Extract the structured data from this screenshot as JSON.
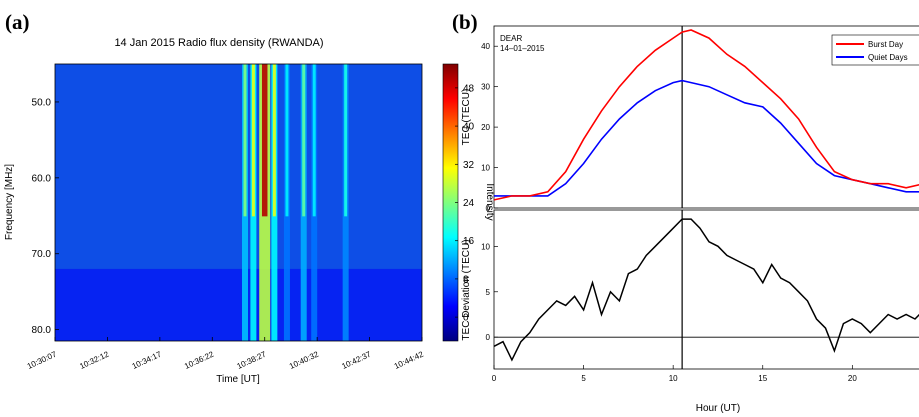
{
  "panel_a": {
    "label": "(a)",
    "title": "14 Jan 2015 Radio flux density (RWANDA)",
    "xlabel": "Time [UT]",
    "ylabel": "Frequency [MHz]",
    "colorbar_label": "Intensity",
    "colorbar_ticks": [
      "48",
      "40",
      "32",
      "24",
      "16",
      "8",
      "0"
    ]
  },
  "panel_b": {
    "label": "(b)",
    "xlabel": "Hour (UT)",
    "top": {
      "annotation_line1": "DEAR",
      "annotation_line2": "14–01–2015",
      "ylabel": "TEC (TECU)",
      "legend": [
        "Burst Day",
        "Quiet Days"
      ]
    },
    "bottom": {
      "ylabel": "TEC Deviation (TECU)"
    }
  },
  "chart_data": [
    {
      "type": "heatmap",
      "title": "14 Jan 2015 Radio flux density (RWANDA)",
      "xlabel": "Time [UT]",
      "ylabel": "Frequency [MHz]",
      "x_tick_labels": [
        "10:30:07",
        "10:32:12",
        "10:34:17",
        "10:36:22",
        "10:38:27",
        "10:40:32",
        "10:42:37",
        "10:44:42"
      ],
      "y_tick_labels": [
        "50.0",
        "60.0",
        "70.0",
        "80.0"
      ],
      "y_ticks": [
        50,
        60,
        70,
        80
      ],
      "ylim": [
        45,
        81.5
      ],
      "y_inverted": true,
      "colorbar_label": "Intensity",
      "colorbar_range": [
        -5,
        53
      ],
      "colorbar_ticks": [
        0,
        8,
        16,
        24,
        32,
        40,
        48
      ],
      "colormap": "jet",
      "background_intensity": 4,
      "features": [
        {
          "time": "10:37:40",
          "intensity_max": 24
        },
        {
          "time": "10:38:00",
          "intensity_max": 30
        },
        {
          "time": "10:38:27",
          "intensity_max": 50
        },
        {
          "time": "10:38:50",
          "intensity_max": 30
        },
        {
          "time": "10:39:20",
          "intensity_max": 16
        },
        {
          "time": "10:40:00",
          "intensity_max": 22
        },
        {
          "time": "10:40:25",
          "intensity_max": 16
        },
        {
          "time": "10:41:40",
          "intensity_max": 18
        }
      ]
    },
    {
      "type": "line",
      "xlabel": "",
      "ylabel": "TEC (TECU)",
      "xlim": [
        0,
        24
      ],
      "ylim": [
        0,
        45
      ],
      "yticks": [
        0,
        10,
        20,
        30,
        40
      ],
      "legend": "top-right",
      "series": [
        {
          "name": "Burst Day",
          "color": "#ff0000",
          "x": [
            0,
            1,
            2,
            3,
            4,
            5,
            6,
            7,
            8,
            9,
            10,
            10.5,
            11,
            12,
            13,
            14,
            15,
            16,
            17,
            18,
            19,
            20,
            21,
            22,
            23,
            24
          ],
          "y": [
            2,
            3,
            3,
            4,
            9,
            17,
            24,
            30,
            35,
            39,
            42,
            43.5,
            44,
            42,
            38,
            35,
            31,
            27,
            22,
            15,
            9,
            7,
            6,
            6,
            5,
            6
          ]
        },
        {
          "name": "Quiet Days",
          "color": "#0000ff",
          "x": [
            0,
            1,
            2,
            3,
            4,
            5,
            6,
            7,
            8,
            9,
            10,
            10.5,
            11,
            12,
            13,
            14,
            15,
            16,
            17,
            18,
            19,
            20,
            21,
            22,
            23,
            24
          ],
          "y": [
            3,
            3,
            3,
            3,
            6,
            11,
            17,
            22,
            26,
            29,
            31,
            31.5,
            31,
            30,
            28,
            26,
            25,
            21,
            16,
            11,
            8,
            7,
            6,
            5,
            4,
            4
          ]
        }
      ],
      "vertical_marker_x": 10.5
    },
    {
      "type": "line",
      "xlabel": "Hour (UT)",
      "ylabel": "TEC Deviation (TECU)",
      "xlim": [
        0,
        24
      ],
      "ylim": [
        -3.5,
        14
      ],
      "xticks": [
        0,
        5,
        10,
        15,
        20
      ],
      "yticks": [
        0,
        5,
        10
      ],
      "series": [
        {
          "color": "#000000",
          "x": [
            0,
            0.5,
            1,
            1.5,
            2,
            2.5,
            3,
            3.5,
            4,
            4.5,
            5,
            5.5,
            6,
            6.5,
            7,
            7.5,
            8,
            8.5,
            9,
            9.5,
            10,
            10.5,
            11,
            11.5,
            12,
            12.5,
            13,
            13.5,
            14,
            14.5,
            15,
            15.5,
            16,
            16.5,
            17,
            17.5,
            18,
            18.5,
            19,
            19.5,
            20,
            20.5,
            21,
            21.5,
            22,
            22.5,
            23,
            23.5,
            24
          ],
          "y": [
            -1,
            -0.5,
            -2.5,
            -0.5,
            0.5,
            2,
            3,
            4,
            3.5,
            4.5,
            3,
            6,
            2.5,
            5,
            4,
            7,
            7.5,
            9,
            10,
            11,
            12,
            13,
            13,
            12,
            10.5,
            10,
            9,
            8.5,
            8,
            7.5,
            6,
            8,
            6.5,
            6,
            5,
            4,
            2,
            1,
            -1.5,
            1.5,
            2,
            1.5,
            0.5,
            1.5,
            2.5,
            2,
            2.5,
            2,
            3
          ]
        }
      ],
      "zero_line": true,
      "vertical_marker_x": 10.5
    }
  ]
}
